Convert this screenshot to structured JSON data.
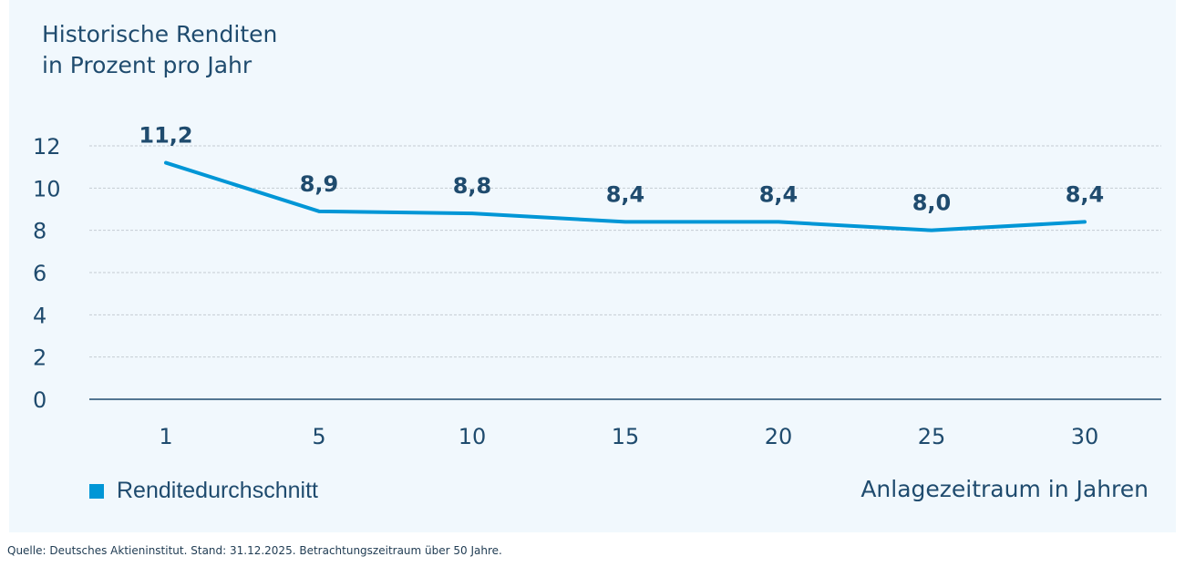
{
  "chart_data": {
    "type": "line",
    "title": "Historische Renditen",
    "subtitle": "in Prozent pro Jahr",
    "xlabel": "Anlagezeitraum in Jahren",
    "ylabel": "",
    "categories": [
      "1",
      "5",
      "10",
      "15",
      "20",
      "25",
      "30"
    ],
    "series": [
      {
        "name": "Renditedurchschnitt",
        "values": [
          11.2,
          8.9,
          8.8,
          8.4,
          8.4,
          8.0,
          8.4
        ],
        "labels": [
          "11,2",
          "8,9",
          "8,8",
          "8,4",
          "8,4",
          "8,0",
          "8,4"
        ],
        "color": "#0096d6"
      }
    ],
    "ylim": [
      0,
      12
    ],
    "yticks": [
      "0",
      "2",
      "4",
      "6",
      "8",
      "10",
      "12"
    ],
    "grid": true,
    "legend_position": "bottom-left"
  },
  "source": "Quelle: Deutsches Aktieninstitut. Stand: 31.12.2025. Betrachtungszeitraum über 50 Jahre.",
  "colors": {
    "background": "#f1f8fd",
    "line": "#0096d6",
    "text": "#1f4b6e",
    "grid": "#c5ccd3",
    "axis": "#1f4b6e"
  }
}
